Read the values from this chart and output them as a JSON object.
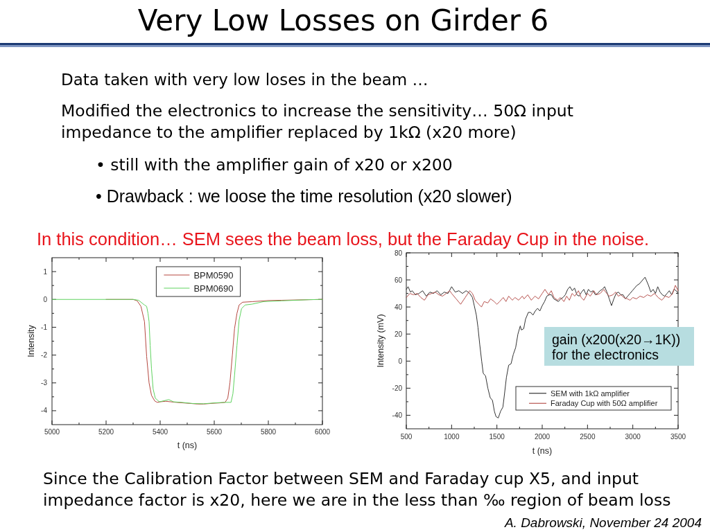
{
  "chart_data": [
    {
      "type": "line",
      "title": "Very Low Losses on Girder 6",
      "annotations": [
        "Data taken with very low loses in the beam …",
        "Modified the electronics to increase the sensitivity… 50Ω input\nimpedance to the amplifier replaced by 1kΩ (x20 more)",
        "• still with the amplifier gain of x20 or x200",
        "• Drawback : we loose the time resolution (x20 slower)",
        "In this condition… SEM sees the beam loss, but the Faraday Cup in the noise."
      ],
      "xlabel": "t (ns)",
      "ylabel": "Intensity",
      "series": [
        {
          "name": "BPM0590",
          "color": "#b5473f",
          "x": [
            5200,
            5300,
            5315,
            5329,
            5342,
            5350,
            5359,
            5368,
            5380,
            5389,
            5400,
            5420,
            5440,
            5460,
            5500,
            5540,
            5560,
            5600,
            5620,
            5640,
            5650,
            5658,
            5667,
            5675,
            5684,
            5692,
            5705,
            5740,
            5800,
            5850,
            5900,
            5950,
            6000
          ],
          "values": [
            0,
            0,
            -0.05,
            -0.25,
            -0.8,
            -2.05,
            -3.0,
            -3.45,
            -3.65,
            -3.7,
            -3.68,
            -3.66,
            -3.68,
            -3.7,
            -3.73,
            -3.76,
            -3.76,
            -3.73,
            -3.72,
            -3.7,
            -3.55,
            -3.0,
            -2.0,
            -1.05,
            -0.5,
            -0.2,
            -0.1,
            -0.08,
            -0.04,
            -0.03,
            -0.02,
            -0.01,
            0
          ]
        },
        {
          "name": "BPM0690",
          "color": "#5fd35f",
          "x": [
            5000,
            5100,
            5200,
            5300,
            5320,
            5342,
            5350,
            5355,
            5359,
            5363,
            5368,
            5374,
            5382,
            5397,
            5415,
            5432,
            5449,
            5480,
            5520,
            5560,
            5600,
            5637,
            5662,
            5669,
            5675,
            5684,
            5692,
            5701,
            5714,
            5740,
            5782,
            5850,
            5900,
            5950,
            6000
          ],
          "values": [
            0,
            0,
            0,
            0,
            -0.03,
            -0.2,
            -0.25,
            -0.5,
            -0.8,
            -1.65,
            -2.5,
            -3.22,
            -3.55,
            -3.68,
            -3.64,
            -3.6,
            -3.68,
            -3.7,
            -3.74,
            -3.75,
            -3.72,
            -3.7,
            -3.7,
            -3.39,
            -2.73,
            -1.65,
            -0.74,
            -0.33,
            -0.2,
            -0.17,
            -0.08,
            -0.05,
            -0.03,
            -0.01,
            0
          ]
        }
      ],
      "xlim": [
        5000,
        6000
      ],
      "ylim": [
        -4.5,
        1.5
      ],
      "xticks": [
        5000,
        {
          "value": 5100,
          "label": null
        },
        5200,
        {
          "value": 5300,
          "label": null
        },
        5400,
        {
          "value": 5500,
          "label": null
        },
        5600,
        {
          "value": 5700,
          "label": null
        },
        5800,
        {
          "value": 5900,
          "label": null
        },
        6000
      ],
      "yticks": [
        -4,
        {
          "value": -3.5,
          "label": null
        },
        -3,
        {
          "value": -2.5,
          "label": null
        },
        -2,
        {
          "value": -1.5,
          "label": null
        },
        -1,
        {
          "value": -0.5,
          "label": null
        },
        0,
        {
          "value": 0.5,
          "label": null
        },
        1
      ],
      "legend": "top",
      "line_style": "solid"
    },
    {
      "type": "line",
      "annotations": [
        "gain (x200(x20→1K))\nfor the electronics",
        "Since the Calibration Factor between SEM and Faraday cup X5, and input\nimpedance factor is x20, here we are in the less than ‰ region of beam loss",
        "A. Dabrowski, November 24 2004"
      ],
      "xlabel": "t (ns)",
      "ylabel": "Intensity (mV)",
      "series": [
        {
          "name": "SEM with 1kΩ amplifier",
          "color": "#333333",
          "x": [
            500,
            520,
            545,
            565,
            600,
            640,
            680,
            720,
            760,
            800,
            840,
            880,
            920,
            960,
            1000,
            1040,
            1080,
            1120,
            1160,
            1200,
            1230,
            1250,
            1273,
            1291,
            1311,
            1332,
            1349,
            1375,
            1400,
            1426,
            1451,
            1472,
            1490,
            1515,
            1541,
            1566,
            1579,
            1605,
            1630,
            1656,
            1681,
            1707,
            1732,
            1758,
            1770,
            1796,
            1816,
            1847,
            1872,
            1898,
            1923,
            1949,
            1974,
            2000,
            2026,
            2051,
            2077,
            2102,
            2128,
            2153,
            2179,
            2204,
            2230,
            2255,
            2281,
            2306,
            2332,
            2357,
            2383,
            2408,
            2434,
            2459,
            2485,
            2510,
            2536,
            2561,
            2587,
            2612,
            2638,
            2663,
            2689,
            2714,
            2740,
            2765,
            2791,
            2816,
            2842,
            2867,
            2893,
            2918,
            2944,
            2969,
            2995,
            3020,
            3046,
            3071,
            3097,
            3122,
            3135,
            3148,
            3173,
            3199,
            3224,
            3250,
            3275,
            3301,
            3326,
            3352,
            3378,
            3403,
            3429,
            3454,
            3480,
            3500
          ],
          "values": [
            53,
            55,
            51,
            52,
            49,
            50,
            52,
            48,
            51,
            50,
            52,
            49,
            51,
            50,
            55,
            51,
            52,
            50,
            52,
            50,
            47,
            41,
            34,
            25,
            12,
            0,
            -9,
            -11,
            -20,
            -27,
            -29,
            -37,
            -41,
            -42,
            -37,
            -34,
            -27,
            -12,
            -3,
            -2,
            5,
            10,
            20,
            26,
            23,
            24,
            31,
            36,
            36,
            34,
            37,
            39,
            37,
            41,
            44,
            48,
            49,
            49,
            46,
            45,
            44,
            46,
            47,
            49,
            53,
            55,
            52,
            54,
            49,
            48,
            51,
            53,
            49,
            53,
            51,
            52,
            49,
            50,
            52,
            53,
            55,
            51,
            46,
            41,
            46,
            50,
            51,
            49,
            49,
            46,
            48,
            50,
            52,
            54,
            56,
            57,
            59,
            61,
            62,
            60,
            56,
            51,
            53,
            50,
            55,
            51,
            49,
            48,
            50,
            52,
            49,
            53,
            52,
            50
          ]
        },
        {
          "name": "Faraday Cup with 50Ω amplifier",
          "color": "#b85450",
          "x": [
            500,
            540,
            580,
            620,
            660,
            700,
            740,
            780,
            820,
            860,
            900,
            940,
            980,
            1000,
            1050,
            1100,
            1150,
            1200,
            1230,
            1260,
            1300,
            1330,
            1360,
            1400,
            1430,
            1470,
            1500,
            1530,
            1570,
            1600,
            1630,
            1670,
            1700,
            1740,
            1780,
            1800,
            1840,
            1880,
            1920,
            1960,
            2000,
            2030,
            2070,
            2100,
            2130,
            2170,
            2200,
            2240,
            2270,
            2300,
            2330,
            2360,
            2400,
            2430,
            2460,
            2500,
            2530,
            2570,
            2600,
            2640,
            2680,
            2700,
            2740,
            2780,
            2810,
            2840,
            2870,
            2900,
            2940,
            2970,
            3000,
            3040,
            3080,
            3120,
            3160,
            3200,
            3240,
            3280,
            3320,
            3360,
            3400,
            3440,
            3470,
            3500
          ],
          "values": [
            47,
            50,
            49,
            50,
            47,
            45,
            49,
            50,
            51,
            49,
            48,
            50,
            52,
            50,
            46,
            42,
            47,
            52,
            50,
            45,
            42,
            40,
            44,
            43,
            46,
            44,
            42,
            44,
            47,
            44,
            48,
            45,
            47,
            45,
            48,
            46,
            49,
            45,
            48,
            46,
            50,
            53,
            49,
            52,
            47,
            45,
            47,
            44,
            48,
            45,
            50,
            48,
            52,
            47,
            45,
            50,
            48,
            52,
            49,
            50,
            53,
            51,
            48,
            49,
            51,
            48,
            49,
            47,
            46,
            45,
            47,
            46,
            48,
            47,
            49,
            48,
            50,
            47,
            45,
            48,
            47,
            50,
            56,
            52
          ]
        }
      ],
      "xlim": [
        500,
        3500
      ],
      "ylim": [
        -50,
        80
      ],
      "xticks": [
        500,
        {
          "value": 750,
          "label": null
        },
        1000,
        {
          "value": 1250,
          "label": null
        },
        1500,
        {
          "value": 1750,
          "label": null
        },
        2000,
        {
          "value": 2250,
          "label": null
        },
        2500,
        {
          "value": 2750,
          "label": null
        },
        3000,
        {
          "value": 3250,
          "label": null
        },
        3500
      ],
      "yticks": [
        -40,
        {
          "value": -30,
          "label": null
        },
        -20,
        {
          "value": -10,
          "label": null
        },
        0,
        {
          "value": 10,
          "label": null
        },
        20,
        {
          "value": 30,
          "label": null
        },
        40,
        {
          "value": 50,
          "label": null
        },
        60,
        {
          "value": 70,
          "label": null
        },
        80
      ],
      "legend": "bottom right",
      "line_style": "solid"
    }
  ]
}
